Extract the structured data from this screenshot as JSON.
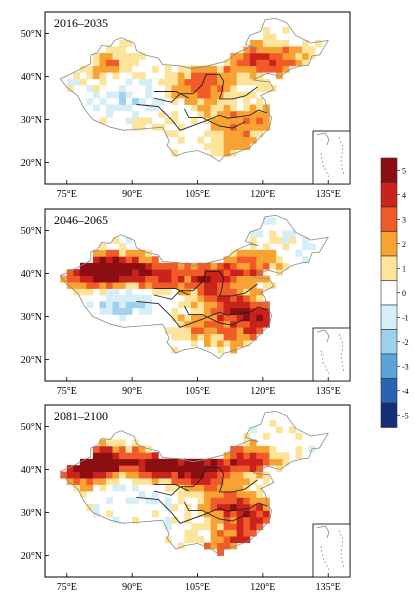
{
  "panels": [
    {
      "period": "2016–2035",
      "hotspots": [
        {
          "lon": 118,
          "lat": 44,
          "value": 3
        },
        {
          "lon": 84,
          "lat": 43,
          "value": 2
        },
        {
          "lon": 105,
          "lat": 37,
          "value": 2
        },
        {
          "lon": 112,
          "lat": 30,
          "value": 2
        },
        {
          "lon": 114,
          "lat": 24,
          "value": 2
        },
        {
          "lon": 125,
          "lat": 44,
          "value": 2
        },
        {
          "lon": 98,
          "lat": 27,
          "value": 1
        },
        {
          "lon": 122,
          "lat": 30,
          "value": 2
        },
        {
          "lon": 90,
          "lat": 35,
          "value": -1
        },
        {
          "lon": 107,
          "lat": 40,
          "value": 2
        }
      ]
    },
    {
      "period": "2046–2065",
      "hotspots": [
        {
          "lon": 86,
          "lat": 41,
          "value": 5
        },
        {
          "lon": 96,
          "lat": 40,
          "value": 4
        },
        {
          "lon": 80,
          "lat": 40,
          "value": 4
        },
        {
          "lon": 108,
          "lat": 39,
          "value": 4
        },
        {
          "lon": 118,
          "lat": 42,
          "value": 3
        },
        {
          "lon": 112,
          "lat": 33,
          "value": 3
        },
        {
          "lon": 120,
          "lat": 30,
          "value": 4
        },
        {
          "lon": 106,
          "lat": 28,
          "value": 2
        },
        {
          "lon": 115,
          "lat": 25,
          "value": 2
        },
        {
          "lon": 88,
          "lat": 34,
          "value": -2
        }
      ]
    },
    {
      "period": "2081–2100",
      "hotspots": [
        {
          "lon": 84,
          "lat": 42,
          "value": 5
        },
        {
          "lon": 96,
          "lat": 41,
          "value": 5
        },
        {
          "lon": 106,
          "lat": 40,
          "value": 5
        },
        {
          "lon": 78,
          "lat": 40,
          "value": 4
        },
        {
          "lon": 117,
          "lat": 42,
          "value": 4
        },
        {
          "lon": 112,
          "lat": 32,
          "value": 3
        },
        {
          "lon": 120,
          "lat": 30,
          "value": 3
        },
        {
          "lon": 109,
          "lat": 19,
          "value": 4
        },
        {
          "lon": 115,
          "lat": 25,
          "value": 3
        },
        {
          "lon": 90,
          "lat": 36,
          "value": -1
        }
      ]
    }
  ],
  "x_ticks": [
    "75°E",
    "90°E",
    "105°E",
    "120°E",
    "135°E"
  ],
  "y_ticks": [
    "50°N",
    "40°N",
    "30°N",
    "20°N"
  ],
  "colorbar": {
    "labels": [
      "5",
      "4",
      "3",
      "2",
      "1",
      "0",
      "-1",
      "-2",
      "-3",
      "-4",
      "-5"
    ],
    "colors": [
      "#8b0f12",
      "#c9231c",
      "#f05b28",
      "#f7a233",
      "#fce49a",
      "#ffffff",
      "#d6eef8",
      "#9fd0ee",
      "#5aa4d9",
      "#2a63b3",
      "#142e78"
    ]
  }
}
